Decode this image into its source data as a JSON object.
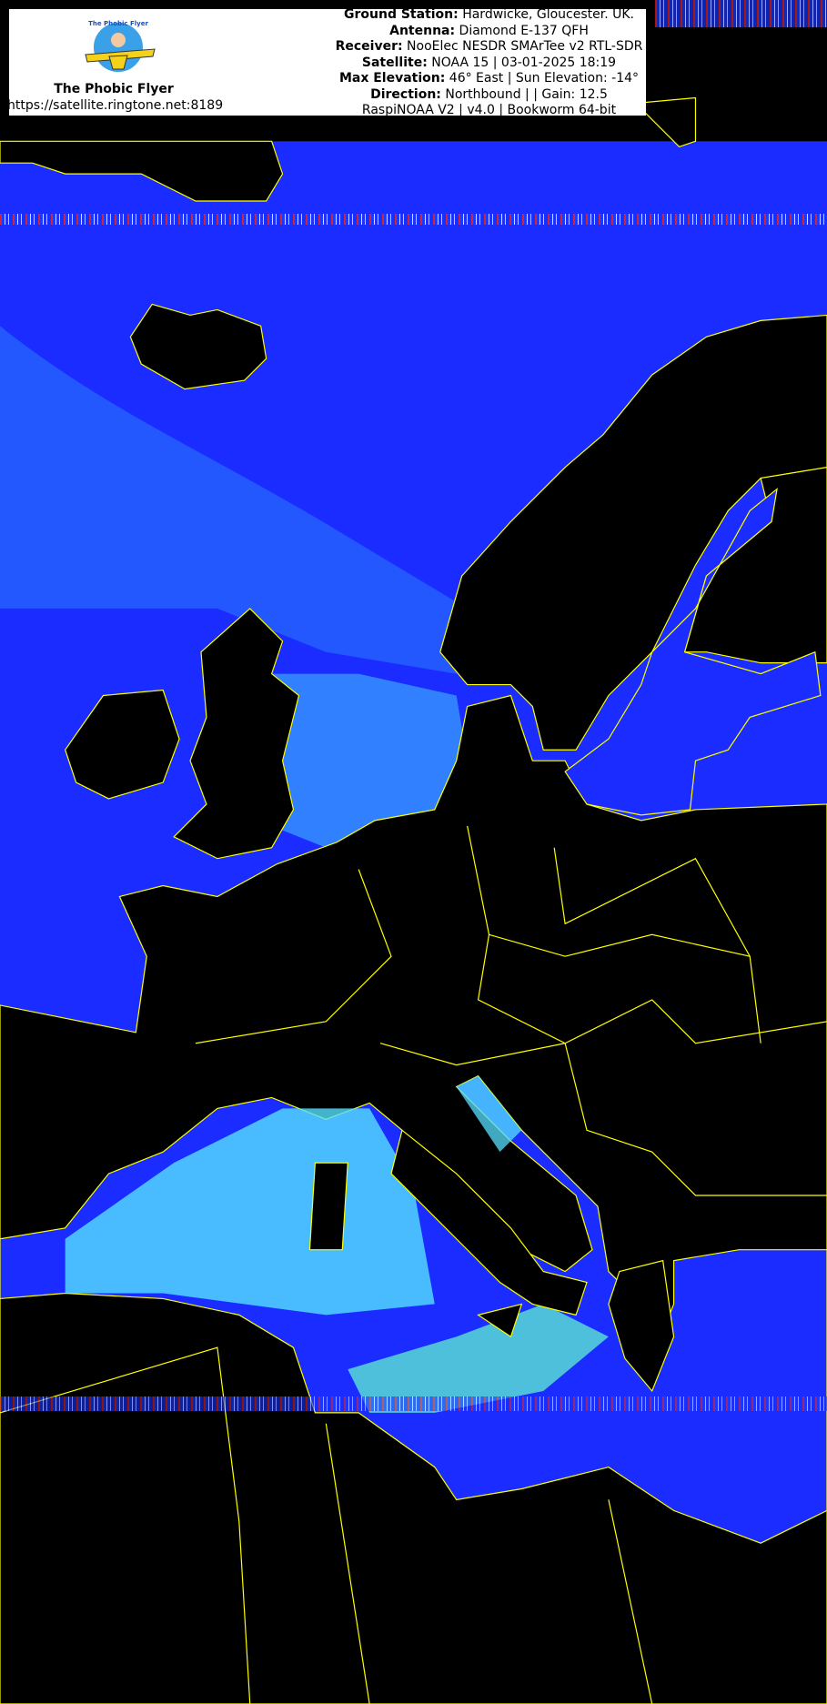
{
  "header": {
    "brand": "The Phobic Flyer",
    "url": "https://satellite.ringtone.net:8189",
    "logo_text": "The Phobic Flyer",
    "lines": [
      {
        "label": "Ground Station:",
        "value": " Hardwicke, Gloucester. UK."
      },
      {
        "label": "Antenna:",
        "value": " Diamond E-137 QFH"
      },
      {
        "label": "Receiver:",
        "value": " NooElec NESDR SMArTee v2 RTL-SDR"
      },
      {
        "label": "Satellite:",
        "value": " NOAA 15 | 03-01-2025 18:19"
      },
      {
        "label": "Max Elevation:",
        "value": " 46° East | Sun Elevation: -14°"
      },
      {
        "label": "Direction:",
        "value": " Northbound | | Gain: 12.5"
      },
      {
        "label": "",
        "value": "RaspiNOAA V2 | v4.0 | Bookworm 64-bit"
      }
    ]
  },
  "colors": {
    "sea": "#1a2cff",
    "cloud": "#33b5ff",
    "cloud_bright": "#66ffcc",
    "land": "#000000",
    "borders": "#ffff00"
  }
}
